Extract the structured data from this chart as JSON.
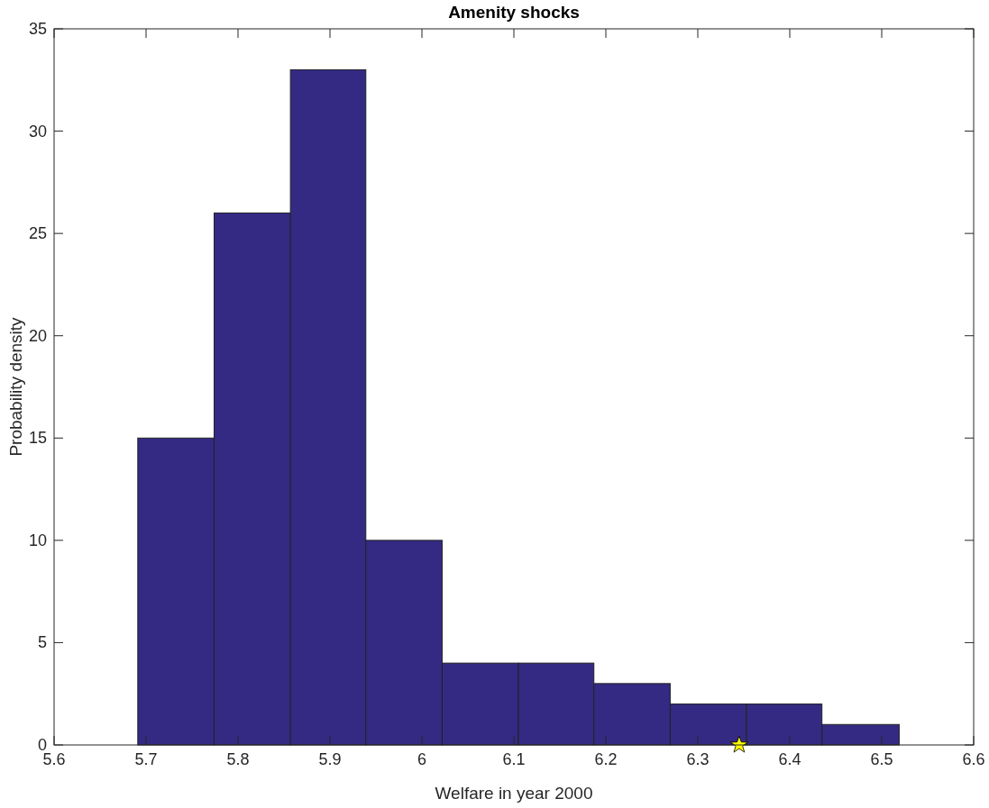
{
  "chart_data": {
    "type": "histogram",
    "title": "Amenity shocks",
    "xlabel": "Welfare in year 2000",
    "ylabel": "Probability density",
    "xlim": [
      5.6,
      6.6
    ],
    "xticks": [
      5.6,
      5.7,
      5.8,
      5.9,
      6,
      6.1,
      6.2,
      6.3,
      6.4,
      6.5,
      6.6
    ],
    "ylim": [
      0,
      35
    ],
    "yticks": [
      0,
      5,
      10,
      15,
      20,
      25,
      30,
      35
    ],
    "grid": false,
    "series": [
      {
        "color": "#342a84",
        "bins": [
          5.691,
          5.774,
          5.857,
          5.939,
          6.022,
          6.105,
          6.187,
          6.27,
          6.353,
          6.435,
          6.519
        ],
        "values": [
          15,
          26,
          33,
          10,
          4,
          4,
          3,
          2,
          2,
          1
        ]
      },
      {
        "type": "scatter",
        "color": "#ffff00",
        "marker": "star",
        "x": [
          6.345
        ],
        "values": [
          0
        ]
      }
    ]
  }
}
